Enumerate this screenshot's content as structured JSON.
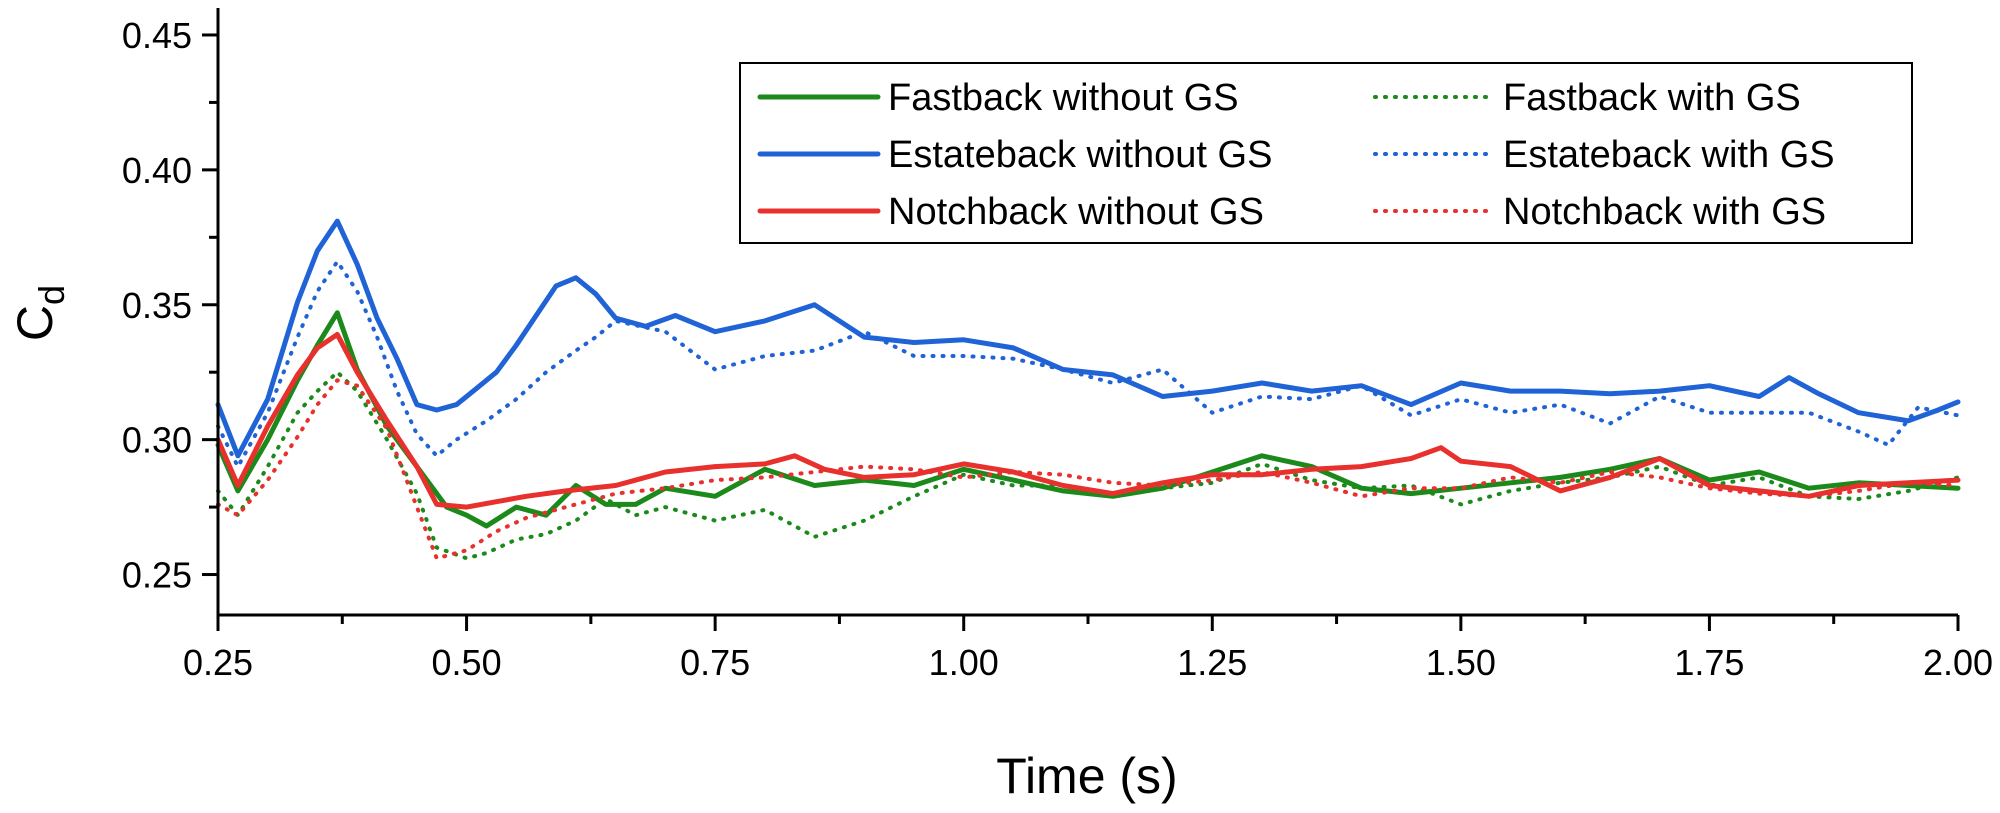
{
  "chart_data": {
    "type": "line",
    "xlabel": "Time (s)",
    "ylabel_main": "C",
    "ylabel_sub": "d",
    "xlim": [
      0.25,
      2.0
    ],
    "ylim": [
      0.235,
      0.46
    ],
    "xticks": [
      0.25,
      0.5,
      0.75,
      1.0,
      1.25,
      1.5,
      1.75,
      2.0
    ],
    "xtick_labels": [
      "0.25",
      "0.50",
      "0.75",
      "1.00",
      "1.25",
      "1.50",
      "1.75",
      "2.00"
    ],
    "yticks": [
      0.25,
      0.3,
      0.35,
      0.4,
      0.45
    ],
    "ytick_labels": [
      "0.25",
      "0.30",
      "0.35",
      "0.40",
      "0.45"
    ],
    "grid": false,
    "legend_position": "top-right",
    "series": [
      {
        "name": "Fastback without GS",
        "color": "#1b8a1b",
        "style": "solid",
        "x": [
          0.25,
          0.27,
          0.3,
          0.33,
          0.35,
          0.37,
          0.39,
          0.42,
          0.45,
          0.48,
          0.5,
          0.52,
          0.55,
          0.58,
          0.61,
          0.64,
          0.67,
          0.7,
          0.75,
          0.8,
          0.85,
          0.9,
          0.95,
          1.0,
          1.05,
          1.1,
          1.15,
          1.2,
          1.25,
          1.3,
          1.35,
          1.4,
          1.45,
          1.5,
          1.55,
          1.6,
          1.65,
          1.7,
          1.75,
          1.8,
          1.85,
          1.9,
          1.95,
          2.0
        ],
        "y": [
          0.298,
          0.281,
          0.3,
          0.322,
          0.335,
          0.347,
          0.326,
          0.305,
          0.29,
          0.275,
          0.272,
          0.268,
          0.275,
          0.272,
          0.283,
          0.276,
          0.276,
          0.282,
          0.279,
          0.289,
          0.283,
          0.285,
          0.283,
          0.289,
          0.285,
          0.281,
          0.279,
          0.282,
          0.288,
          0.294,
          0.29,
          0.282,
          0.28,
          0.282,
          0.284,
          0.286,
          0.289,
          0.293,
          0.285,
          0.288,
          0.282,
          0.284,
          0.283,
          0.282
        ]
      },
      {
        "name": "Fastback with GS",
        "color": "#1b8a1b",
        "style": "dotted",
        "x": [
          0.25,
          0.27,
          0.3,
          0.33,
          0.35,
          0.37,
          0.39,
          0.42,
          0.45,
          0.47,
          0.5,
          0.52,
          0.55,
          0.58,
          0.61,
          0.64,
          0.67,
          0.7,
          0.75,
          0.8,
          0.85,
          0.9,
          0.95,
          1.0,
          1.05,
          1.1,
          1.15,
          1.2,
          1.25,
          1.3,
          1.35,
          1.4,
          1.45,
          1.5,
          1.55,
          1.6,
          1.65,
          1.7,
          1.75,
          1.8,
          1.85,
          1.9,
          1.95,
          2.0
        ],
        "y": [
          0.281,
          0.272,
          0.29,
          0.31,
          0.318,
          0.325,
          0.318,
          0.3,
          0.28,
          0.26,
          0.256,
          0.258,
          0.263,
          0.265,
          0.27,
          0.278,
          0.272,
          0.275,
          0.27,
          0.274,
          0.264,
          0.27,
          0.279,
          0.287,
          0.283,
          0.283,
          0.28,
          0.282,
          0.284,
          0.291,
          0.285,
          0.282,
          0.283,
          0.276,
          0.281,
          0.284,
          0.286,
          0.29,
          0.283,
          0.286,
          0.279,
          0.278,
          0.281,
          0.286
        ]
      },
      {
        "name": "Estateback without GS",
        "color": "#1f63d6",
        "style": "solid",
        "x": [
          0.25,
          0.27,
          0.3,
          0.33,
          0.35,
          0.37,
          0.39,
          0.41,
          0.43,
          0.45,
          0.47,
          0.49,
          0.51,
          0.53,
          0.55,
          0.57,
          0.59,
          0.61,
          0.63,
          0.65,
          0.68,
          0.71,
          0.75,
          0.8,
          0.85,
          0.9,
          0.95,
          1.0,
          1.05,
          1.1,
          1.15,
          1.2,
          1.25,
          1.3,
          1.35,
          1.4,
          1.45,
          1.5,
          1.55,
          1.6,
          1.65,
          1.7,
          1.75,
          1.8,
          1.83,
          1.86,
          1.9,
          1.95,
          1.98,
          2.0
        ],
        "y": [
          0.313,
          0.294,
          0.315,
          0.351,
          0.37,
          0.381,
          0.365,
          0.345,
          0.33,
          0.313,
          0.311,
          0.313,
          0.319,
          0.325,
          0.335,
          0.346,
          0.357,
          0.36,
          0.354,
          0.345,
          0.342,
          0.346,
          0.34,
          0.344,
          0.35,
          0.338,
          0.336,
          0.337,
          0.334,
          0.326,
          0.324,
          0.316,
          0.318,
          0.321,
          0.318,
          0.32,
          0.313,
          0.321,
          0.318,
          0.318,
          0.317,
          0.318,
          0.32,
          0.316,
          0.323,
          0.317,
          0.31,
          0.307,
          0.311,
          0.314
        ]
      },
      {
        "name": "Estateback with GS",
        "color": "#1f63d6",
        "style": "dotted",
        "x": [
          0.25,
          0.27,
          0.3,
          0.33,
          0.35,
          0.37,
          0.39,
          0.41,
          0.43,
          0.45,
          0.47,
          0.49,
          0.52,
          0.55,
          0.58,
          0.61,
          0.63,
          0.65,
          0.7,
          0.75,
          0.8,
          0.85,
          0.9,
          0.95,
          1.0,
          1.05,
          1.1,
          1.15,
          1.2,
          1.25,
          1.3,
          1.35,
          1.4,
          1.45,
          1.5,
          1.55,
          1.6,
          1.65,
          1.7,
          1.75,
          1.8,
          1.85,
          1.9,
          1.93,
          1.96,
          2.0
        ],
        "y": [
          0.305,
          0.29,
          0.31,
          0.338,
          0.355,
          0.366,
          0.355,
          0.338,
          0.318,
          0.302,
          0.294,
          0.3,
          0.307,
          0.315,
          0.325,
          0.333,
          0.338,
          0.344,
          0.34,
          0.326,
          0.331,
          0.333,
          0.34,
          0.331,
          0.331,
          0.33,
          0.326,
          0.321,
          0.326,
          0.31,
          0.316,
          0.315,
          0.32,
          0.309,
          0.315,
          0.31,
          0.313,
          0.306,
          0.316,
          0.31,
          0.31,
          0.31,
          0.303,
          0.298,
          0.312,
          0.309
        ]
      },
      {
        "name": "Notchback without GS",
        "color": "#e8302c",
        "style": "solid",
        "x": [
          0.25,
          0.27,
          0.3,
          0.33,
          0.35,
          0.37,
          0.39,
          0.42,
          0.45,
          0.47,
          0.5,
          0.53,
          0.56,
          0.6,
          0.65,
          0.7,
          0.75,
          0.8,
          0.83,
          0.86,
          0.9,
          0.95,
          1.0,
          1.05,
          1.1,
          1.15,
          1.2,
          1.25,
          1.3,
          1.35,
          1.4,
          1.45,
          1.48,
          1.5,
          1.55,
          1.6,
          1.65,
          1.7,
          1.75,
          1.8,
          1.85,
          1.9,
          1.95,
          2.0
        ],
        "y": [
          0.3,
          0.283,
          0.305,
          0.324,
          0.334,
          0.339,
          0.325,
          0.307,
          0.29,
          0.276,
          0.275,
          0.277,
          0.279,
          0.281,
          0.283,
          0.288,
          0.29,
          0.291,
          0.294,
          0.289,
          0.286,
          0.287,
          0.291,
          0.288,
          0.283,
          0.28,
          0.284,
          0.287,
          0.287,
          0.289,
          0.29,
          0.293,
          0.297,
          0.292,
          0.29,
          0.281,
          0.286,
          0.293,
          0.283,
          0.281,
          0.279,
          0.283,
          0.284,
          0.285
        ]
      },
      {
        "name": "Notchback with GS",
        "color": "#e8302c",
        "style": "dotted",
        "x": [
          0.25,
          0.27,
          0.3,
          0.33,
          0.35,
          0.37,
          0.39,
          0.42,
          0.45,
          0.47,
          0.5,
          0.53,
          0.56,
          0.6,
          0.65,
          0.7,
          0.75,
          0.8,
          0.85,
          0.9,
          0.95,
          1.0,
          1.05,
          1.1,
          1.15,
          1.2,
          1.25,
          1.3,
          1.35,
          1.4,
          1.45,
          1.5,
          1.55,
          1.6,
          1.65,
          1.7,
          1.75,
          1.8,
          1.85,
          1.9,
          1.95,
          2.0
        ],
        "y": [
          0.276,
          0.272,
          0.285,
          0.301,
          0.313,
          0.322,
          0.32,
          0.304,
          0.275,
          0.256,
          0.259,
          0.266,
          0.271,
          0.275,
          0.28,
          0.282,
          0.285,
          0.286,
          0.288,
          0.29,
          0.289,
          0.286,
          0.288,
          0.287,
          0.284,
          0.283,
          0.285,
          0.288,
          0.284,
          0.279,
          0.282,
          0.282,
          0.286,
          0.284,
          0.288,
          0.286,
          0.282,
          0.28,
          0.279,
          0.281,
          0.284,
          0.283
        ]
      }
    ]
  }
}
